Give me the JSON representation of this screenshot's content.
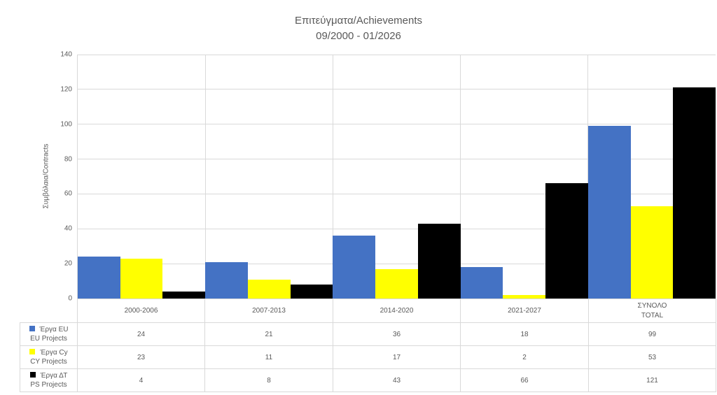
{
  "chart_data": {
    "type": "bar",
    "title": "Επιτεύγματα/Achievements",
    "subtitle": "09/2000 - 01/2026",
    "ylabel": "Συμβόλαια/Contracts",
    "xlabel": "",
    "ylim": [
      0,
      140
    ],
    "y_tick_step": 20,
    "y_ticks": [
      140,
      120,
      100,
      80,
      60,
      40,
      20,
      0
    ],
    "grid": true,
    "legend_position": "table-left",
    "categories": [
      "2000-2006",
      "2007-2013",
      "2014-2020",
      "2021-2027",
      "ΣΥΝΟΛΟ\nTOTAL"
    ],
    "series": [
      {
        "name": "Έργα EU",
        "name_en": "EU Projects",
        "color": "#4472C4",
        "values": [
          24,
          21,
          36,
          18,
          99
        ]
      },
      {
        "name": "Έργα Cy",
        "name_en": "CY Projects",
        "color": "#FFFF00",
        "values": [
          23,
          11,
          17,
          2,
          53
        ]
      },
      {
        "name": "Έργα ΔΤ",
        "name_en": "PS Projects",
        "color": "#000000",
        "values": [
          4,
          8,
          43,
          66,
          121
        ]
      }
    ],
    "colors": {
      "gridline": "#D9D9D9",
      "text": "#595959",
      "background": "#FFFFFF"
    }
  }
}
